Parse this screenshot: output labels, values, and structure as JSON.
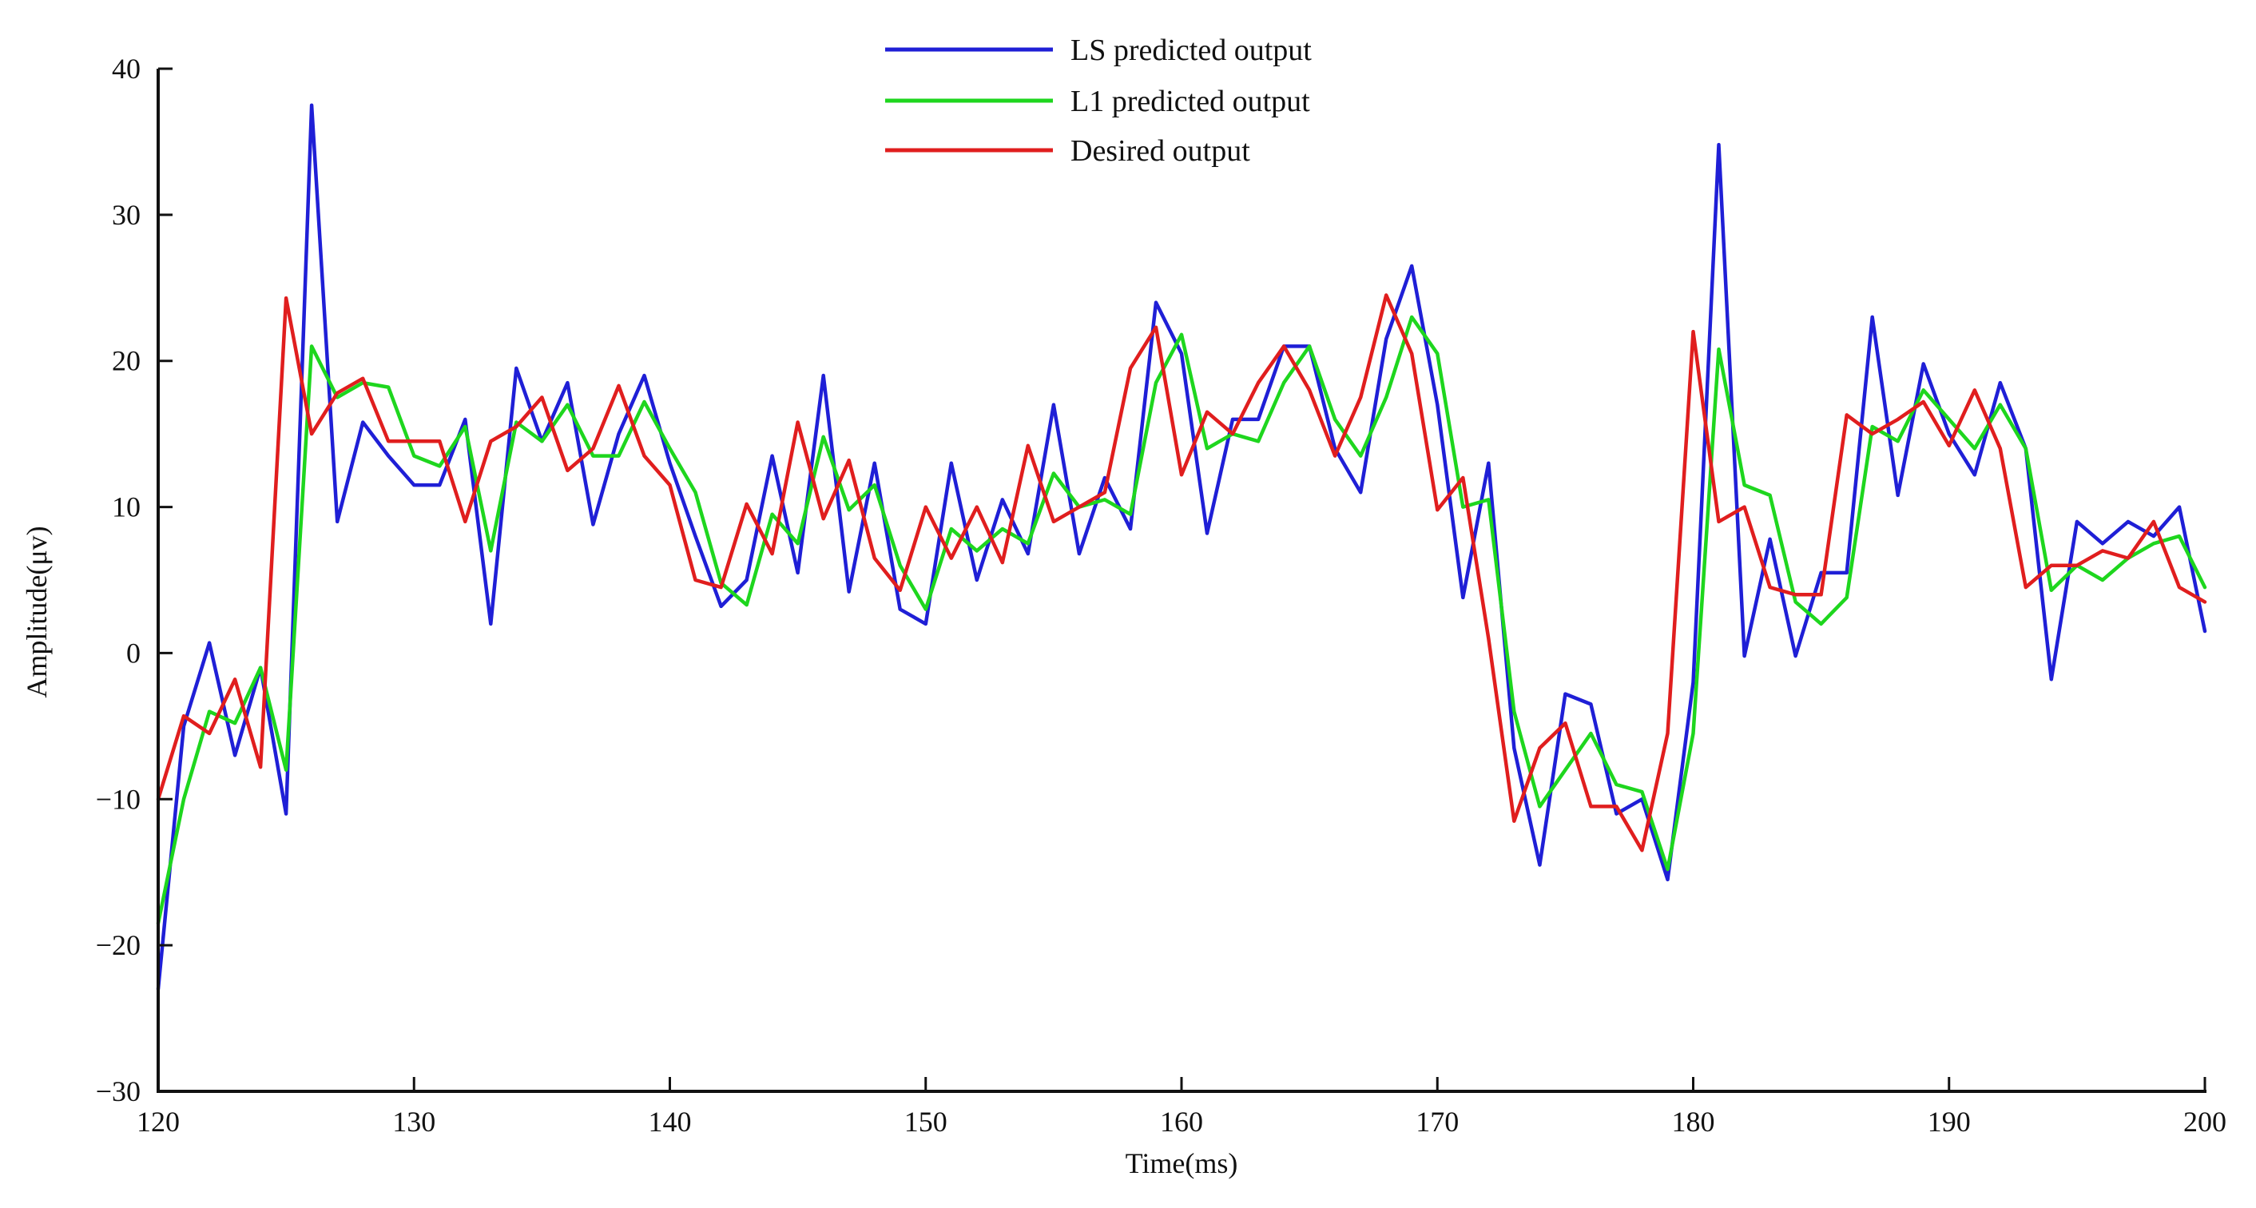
{
  "chart_data": {
    "type": "line",
    "title": "",
    "xlabel": "Time(ms)",
    "ylabel": "Amplitude(μv)",
    "xlim": [
      120,
      200
    ],
    "ylim": [
      -30,
      40
    ],
    "x_ticks": [
      120,
      130,
      140,
      150,
      160,
      170,
      180,
      190,
      200
    ],
    "y_ticks": [
      -30,
      -20,
      -10,
      0,
      10,
      20,
      30,
      40
    ],
    "x_tick_labels": [
      "120",
      "130",
      "140",
      "150",
      "160",
      "170",
      "180",
      "190",
      "200"
    ],
    "y_tick_labels": [
      "−30",
      "−20",
      "−10",
      "0",
      "10",
      "20",
      "30",
      "40"
    ],
    "grid": false,
    "legend_position": "top-center",
    "x": [
      120,
      121,
      122,
      123,
      124,
      125,
      126,
      127,
      128,
      129,
      130,
      131,
      132,
      133,
      134,
      135,
      136,
      137,
      138,
      139,
      140,
      141,
      142,
      143,
      144,
      145,
      146,
      147,
      148,
      149,
      150,
      151,
      152,
      153,
      154,
      155,
      156,
      157,
      158,
      159,
      160,
      161,
      162,
      163,
      164,
      165,
      166,
      167,
      168,
      169,
      170,
      171,
      172,
      173,
      174,
      175,
      176,
      177,
      178,
      179,
      180,
      181,
      182,
      183,
      184,
      185,
      186,
      187,
      188,
      189,
      190,
      191,
      192,
      193,
      194,
      195,
      196,
      197,
      198,
      199,
      200
    ],
    "series": [
      {
        "name": "LS predicted output",
        "color": "#1f1fd6",
        "values": [
          -23,
          -5,
          0.7,
          -7,
          -1,
          -11,
          37.5,
          9,
          15.8,
          13.5,
          11.5,
          11.5,
          16,
          2,
          19.5,
          14.5,
          18.5,
          8.8,
          15,
          19,
          13,
          8,
          3.2,
          5,
          13.5,
          5.5,
          19,
          4.2,
          13,
          3,
          2,
          13,
          5,
          10.5,
          6.8,
          17,
          6.8,
          12,
          8.5,
          24,
          20.5,
          8.2,
          16,
          16,
          21,
          21,
          14,
          11,
          21.5,
          26.5,
          17,
          3.8,
          13,
          -6.5,
          -14.5,
          -2.8,
          -3.5,
          -11,
          -10,
          -15.5,
          -2,
          34.8,
          -0.2,
          7.8,
          -0.2,
          5.5,
          5.5,
          23,
          10.8,
          19.8,
          15,
          12.2,
          18.5,
          14,
          -1.8,
          9,
          7.5,
          9,
          8,
          10,
          1.5
        ]
      },
      {
        "name": "L1 predicted output",
        "color": "#1ed61e",
        "values": [
          -18.5,
          -10,
          -4,
          -4.8,
          -1,
          -8,
          21,
          17.5,
          18.5,
          18.2,
          13.5,
          12.8,
          15.5,
          7,
          15.8,
          14.5,
          17,
          13.5,
          13.5,
          17.2,
          14,
          11,
          4.8,
          3.3,
          9.5,
          7.5,
          14.8,
          9.8,
          11.5,
          6,
          3,
          8.5,
          7,
          8.5,
          7.5,
          12.3,
          10,
          10.5,
          9.5,
          18.5,
          21.8,
          14,
          15,
          14.5,
          18.5,
          21,
          16,
          13.5,
          17.5,
          23,
          20.5,
          10,
          10.5,
          -4,
          -10.5,
          -8,
          -5.5,
          -9,
          -9.5,
          -14.8,
          -5.5,
          20.8,
          11.5,
          10.8,
          3.5,
          2,
          3.8,
          15.5,
          14.5,
          18,
          16,
          14,
          17,
          14,
          4.3,
          6,
          5,
          6.5,
          7.5,
          8,
          4.5
        ]
      },
      {
        "name": "Desired output",
        "color": "#e01e1e",
        "values": [
          -10,
          -4.3,
          -5.5,
          -1.8,
          -7.8,
          24.3,
          15,
          17.8,
          18.8,
          14.5,
          14.5,
          14.5,
          9,
          14.5,
          15.5,
          17.5,
          12.5,
          14,
          18.3,
          13.5,
          11.5,
          5,
          4.5,
          10.2,
          6.8,
          15.8,
          9.2,
          13.2,
          6.5,
          4.3,
          10,
          6.5,
          10,
          6.2,
          14.2,
          9,
          10,
          11,
          19.5,
          22.3,
          12.2,
          16.5,
          15,
          18.5,
          21,
          18,
          13.5,
          17.5,
          24.5,
          20.5,
          9.8,
          12,
          1,
          -11.5,
          -6.5,
          -4.8,
          -10.5,
          -10.5,
          -13.5,
          -5.5,
          22,
          9,
          10,
          4.5,
          4,
          4,
          16.3,
          15,
          16,
          17.2,
          14.2,
          18,
          14,
          4.5,
          6,
          6,
          7,
          6.5,
          9,
          4.5,
          3.5
        ]
      }
    ]
  }
}
